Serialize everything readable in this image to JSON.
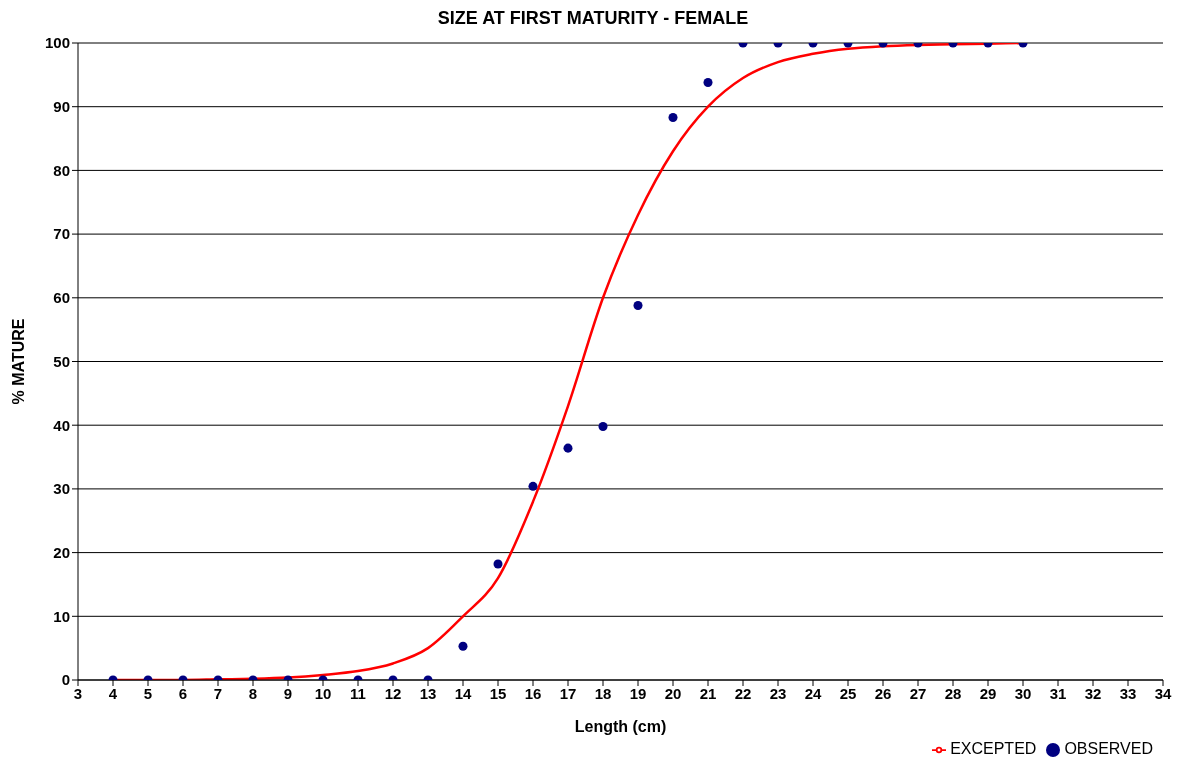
{
  "chart_data": {
    "type": "scatter",
    "title": "SIZE AT FIRST MATURITY - FEMALE",
    "xlabel": "Length (cm)",
    "ylabel": "% MATURE",
    "series": [
      {
        "name": "OBSERVED",
        "color": "#000080",
        "marker": "circle",
        "x": [
          4,
          5,
          6,
          7,
          8,
          9,
          10,
          11,
          12,
          13,
          14,
          15,
          16,
          17,
          18,
          19,
          20,
          21,
          22,
          23,
          24,
          25,
          26,
          27,
          28,
          29,
          30
        ],
        "values": [
          0,
          0,
          0,
          0,
          0,
          0,
          0,
          0,
          0,
          0,
          5.3,
          18.2,
          30.4,
          36.4,
          39.8,
          58.8,
          88.3,
          93.8,
          100,
          100,
          100,
          100,
          100,
          100,
          100,
          100,
          100
        ]
      },
      {
        "name": "EXCEPTED",
        "type": "line",
        "color": "#ff0000",
        "marker": "none",
        "line_style": "solid",
        "x": [
          4,
          5,
          6,
          7,
          8,
          9,
          10,
          11,
          12,
          13,
          14,
          15,
          16,
          17,
          18,
          19,
          20,
          21,
          22,
          23,
          24,
          25,
          26,
          27,
          28,
          29,
          30
        ],
        "values": [
          0,
          0,
          0,
          0.1,
          0.2,
          0.4,
          0.8,
          1.4,
          2.6,
          5,
          10,
          16,
          28,
          43,
          60,
          73,
          83,
          90,
          94.5,
          97,
          98.3,
          99.1,
          99.5,
          99.7,
          99.8,
          99.9,
          100
        ]
      }
    ],
    "xlim": [
      3,
      34
    ],
    "xticks": [
      3,
      4,
      5,
      6,
      7,
      8,
      9,
      10,
      11,
      12,
      13,
      14,
      15,
      16,
      17,
      18,
      19,
      20,
      21,
      22,
      23,
      24,
      25,
      26,
      27,
      28,
      29,
      30,
      31,
      32,
      33,
      34
    ],
    "ylim": [
      0,
      100
    ],
    "yticks": [
      0,
      10,
      20,
      30,
      40,
      50,
      60,
      70,
      80,
      90,
      100
    ],
    "grid": "y",
    "legend": "bottom right"
  }
}
